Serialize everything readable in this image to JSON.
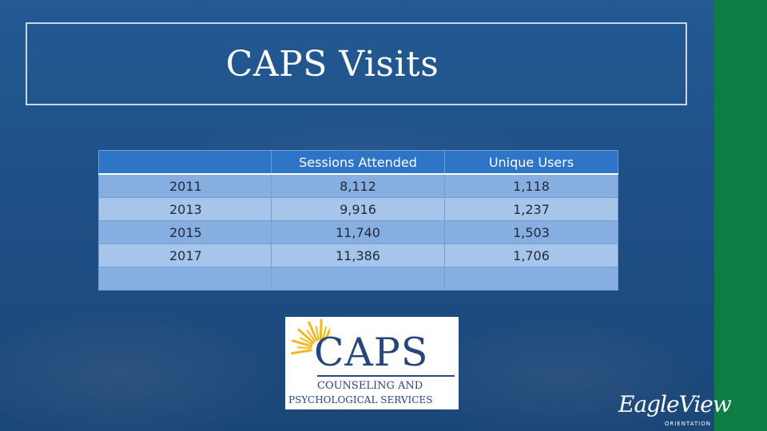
{
  "slide": {
    "title": "CAPS Visits"
  },
  "table": {
    "headers": [
      "",
      "Sessions Attended",
      "Unique Users"
    ],
    "rows": [
      [
        "2011",
        "8,112",
        "1,118"
      ],
      [
        "2013",
        "9,916",
        "1,237"
      ],
      [
        "2015",
        "11,740",
        "1,503"
      ],
      [
        "2017",
        "11,386",
        "1,706"
      ],
      [
        "",
        "",
        ""
      ]
    ]
  },
  "caps_logo": {
    "wordmark": "CAPS",
    "line1": "COUNSELING AND",
    "line2": "PSYCHOLOGICAL SERVICES",
    "sun_color": "#f2b81d",
    "text_color": "#26467e"
  },
  "eagleview_logo": {
    "script": "EagleView",
    "sub": "ORIENTATION"
  },
  "colors": {
    "background": "#1f5189",
    "accent_bar": "#0e7d43",
    "header_row": "#2f75c7",
    "row_band_a": "#86aee0",
    "row_band_b": "#a7c5ea"
  }
}
